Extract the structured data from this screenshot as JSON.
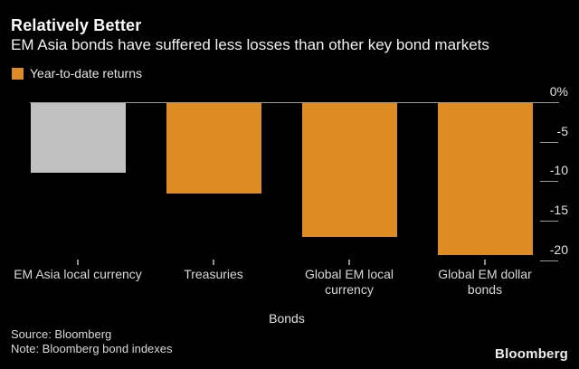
{
  "header": {
    "title": "Relatively Better",
    "subtitle": "EM Asia bonds have suffered less losses than other key bond markets"
  },
  "legend": {
    "label": "Year-to-date returns",
    "swatch_color": "#dd8c23"
  },
  "chart_data": {
    "type": "bar",
    "title": "Relatively Better",
    "subtitle": "EM Asia bonds have suffered less losses than other key bond markets",
    "series_name": "Year-to-date returns",
    "categories": [
      "EM Asia local currency",
      "Treasuries",
      "Global EM local currency",
      "Global EM dollar bonds"
    ],
    "category_lines": [
      [
        "EM Asia local currency"
      ],
      [
        "Treasuries"
      ],
      [
        "Global EM local",
        "currency"
      ],
      [
        "Global EM dollar",
        "bonds"
      ]
    ],
    "values": [
      -8.8,
      -11.4,
      -16.9,
      -19.2
    ],
    "unit": "%",
    "bar_colors": [
      "#c1c1c1",
      "#dd8c23",
      "#dd8c23",
      "#dd8c23"
    ],
    "xlabel": "Bonds",
    "ylabel": "",
    "ylim": [
      -20,
      0
    ],
    "y_ticks": [
      {
        "label": "0%",
        "value": 0
      },
      {
        "label": "-5",
        "value": -5
      },
      {
        "label": "-10",
        "value": -10
      },
      {
        "label": "-15",
        "value": -15
      },
      {
        "label": "-20",
        "value": -20
      }
    ],
    "yaxis_side": "right",
    "grid": false,
    "legend_position": "top-left",
    "background_color": "#000000"
  },
  "footer": {
    "source": "Source: Bloomberg",
    "note": "Note: Bloomberg bond indexes",
    "brand": "Bloomberg"
  }
}
